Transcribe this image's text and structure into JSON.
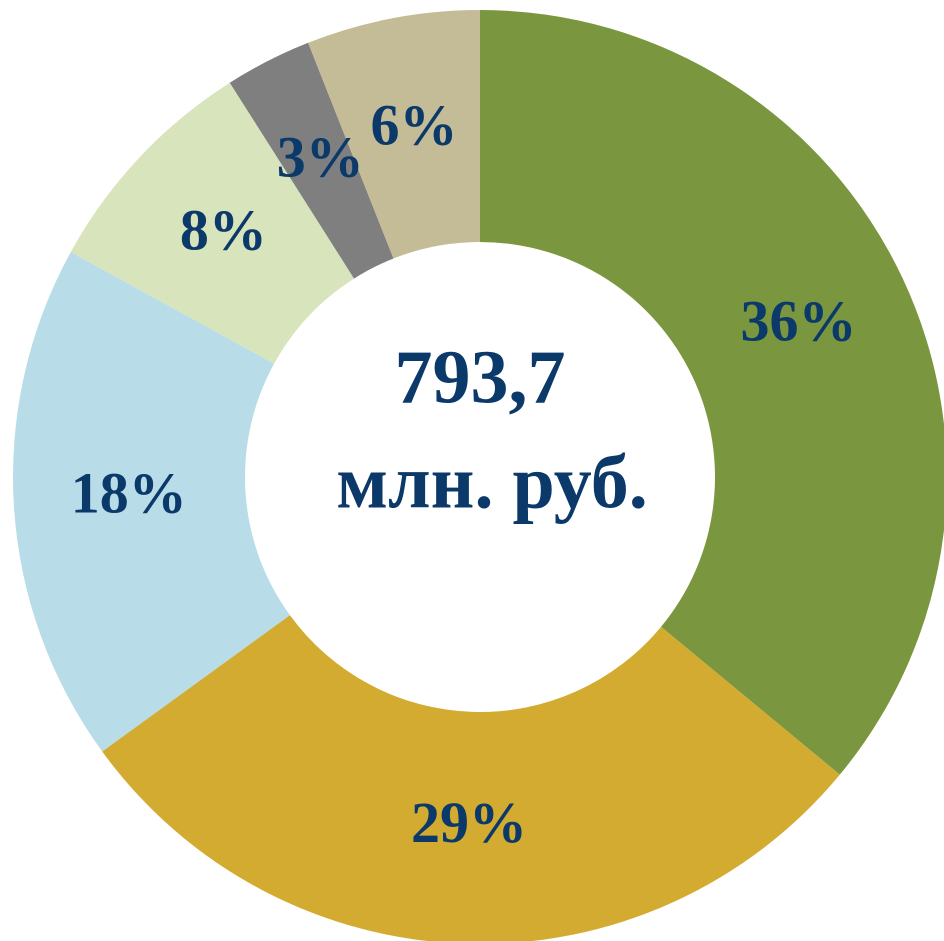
{
  "chart_data": {
    "type": "donut",
    "center_text": [
      "793,7",
      "млн. руб."
    ],
    "values": [
      36,
      29,
      18,
      8,
      3,
      6
    ],
    "value_labels": [
      "36%",
      "29%",
      "18%",
      "8%",
      "3%",
      "6%"
    ],
    "colors": [
      "#7a963e",
      "#d3ab30",
      "#b8dce8",
      "#d8e4bc",
      "#7f7f7f",
      "#c4bc96"
    ]
  }
}
